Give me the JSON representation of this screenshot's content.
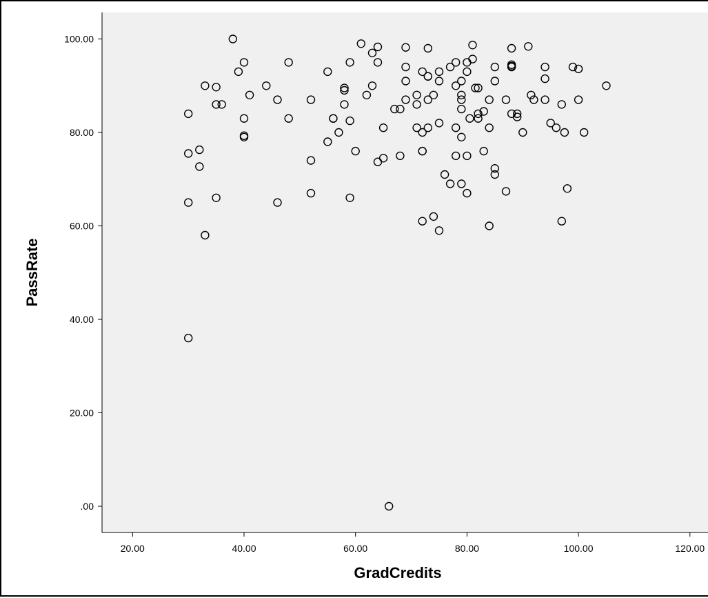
{
  "chart_data": {
    "type": "scatter",
    "title": "",
    "xlabel": "GradCredits",
    "ylabel": "PassRate",
    "xlim": [
      15,
      125
    ],
    "ylim": [
      -5,
      105
    ],
    "x_ticks": [
      "20.00",
      "40.00",
      "60.00",
      "80.00",
      "100.00",
      "120.00"
    ],
    "y_ticks": [
      ".00",
      "20.00",
      "40.00",
      "60.00",
      "80.00",
      "100.00"
    ],
    "grid": false,
    "legend": "none",
    "marker": "hollow-circle",
    "colors": {
      "plot_background": "#f0f0f0",
      "marker": "#000000",
      "axis": "#000000"
    },
    "points": [
      [
        30,
        36
      ],
      [
        30,
        65
      ],
      [
        30,
        75.5
      ],
      [
        30,
        84
      ],
      [
        32,
        76.3
      ],
      [
        32,
        72.7
      ],
      [
        33,
        58
      ],
      [
        33,
        90
      ],
      [
        35,
        89.7
      ],
      [
        35,
        86
      ],
      [
        35,
        66
      ],
      [
        36,
        86
      ],
      [
        38,
        100
      ],
      [
        39,
        93
      ],
      [
        40,
        95
      ],
      [
        40,
        83
      ],
      [
        40,
        79.3
      ],
      [
        40,
        79
      ],
      [
        41,
        88
      ],
      [
        44,
        90
      ],
      [
        46,
        87
      ],
      [
        46,
        65
      ],
      [
        48,
        95
      ],
      [
        48,
        83
      ],
      [
        52,
        87
      ],
      [
        52,
        74
      ],
      [
        52,
        67
      ],
      [
        55,
        93
      ],
      [
        55,
        78
      ],
      [
        56,
        83
      ],
      [
        56,
        83
      ],
      [
        57,
        80
      ],
      [
        58,
        89.5
      ],
      [
        58,
        89
      ],
      [
        58,
        86
      ],
      [
        59,
        95
      ],
      [
        59,
        82.5
      ],
      [
        59,
        66
      ],
      [
        60,
        76
      ],
      [
        61,
        99
      ],
      [
        62,
        88
      ],
      [
        63,
        97
      ],
      [
        63,
        90
      ],
      [
        64,
        98.3
      ],
      [
        64,
        95
      ],
      [
        64,
        73.7
      ],
      [
        65,
        81
      ],
      [
        65,
        74.5
      ],
      [
        66,
        0
      ],
      [
        67,
        85
      ],
      [
        68,
        85
      ],
      [
        68,
        75
      ],
      [
        69,
        98.2
      ],
      [
        69,
        94
      ],
      [
        69,
        91
      ],
      [
        69,
        87
      ],
      [
        71,
        88
      ],
      [
        71,
        86
      ],
      [
        71,
        81
      ],
      [
        72,
        93
      ],
      [
        72,
        80
      ],
      [
        72,
        76
      ],
      [
        72,
        76
      ],
      [
        72,
        61
      ],
      [
        73,
        98
      ],
      [
        73,
        92
      ],
      [
        73,
        92
      ],
      [
        73,
        87
      ],
      [
        73,
        81
      ],
      [
        74,
        88
      ],
      [
        74,
        62
      ],
      [
        75,
        93
      ],
      [
        75,
        91
      ],
      [
        75,
        82
      ],
      [
        75,
        59
      ],
      [
        76,
        71
      ],
      [
        77,
        94
      ],
      [
        77,
        69
      ],
      [
        78,
        95
      ],
      [
        78,
        90
      ],
      [
        78,
        81
      ],
      [
        78,
        75
      ],
      [
        79,
        91
      ],
      [
        79,
        88
      ],
      [
        79,
        87
      ],
      [
        79,
        85
      ],
      [
        79,
        79
      ],
      [
        79,
        69
      ],
      [
        80,
        95
      ],
      [
        80,
        93
      ],
      [
        80,
        75
      ],
      [
        80,
        67
      ],
      [
        80.5,
        83
      ],
      [
        81,
        98.7
      ],
      [
        81,
        95.7
      ],
      [
        81.5,
        89.5
      ],
      [
        82,
        89.5
      ],
      [
        82,
        84
      ],
      [
        82,
        83
      ],
      [
        83,
        84.5
      ],
      [
        83,
        76
      ],
      [
        84,
        87
      ],
      [
        84,
        81
      ],
      [
        84,
        60
      ],
      [
        85,
        94
      ],
      [
        85,
        91
      ],
      [
        85,
        72.3
      ],
      [
        85,
        71
      ],
      [
        87,
        87
      ],
      [
        87,
        67.4
      ],
      [
        88,
        98
      ],
      [
        88,
        94.5
      ],
      [
        88,
        94.2
      ],
      [
        88,
        94
      ],
      [
        88,
        84
      ],
      [
        89,
        84
      ],
      [
        89,
        83.3
      ],
      [
        90,
        80
      ],
      [
        91,
        98.4
      ],
      [
        91.5,
        88
      ],
      [
        92,
        87
      ],
      [
        94,
        94
      ],
      [
        94,
        91.5
      ],
      [
        94,
        87
      ],
      [
        95,
        82
      ],
      [
        96,
        81
      ],
      [
        97,
        86
      ],
      [
        97,
        61
      ],
      [
        97.5,
        80
      ],
      [
        98,
        68
      ],
      [
        99,
        94
      ],
      [
        100,
        93.6
      ],
      [
        100,
        87
      ],
      [
        101,
        80
      ],
      [
        105,
        90
      ]
    ]
  }
}
